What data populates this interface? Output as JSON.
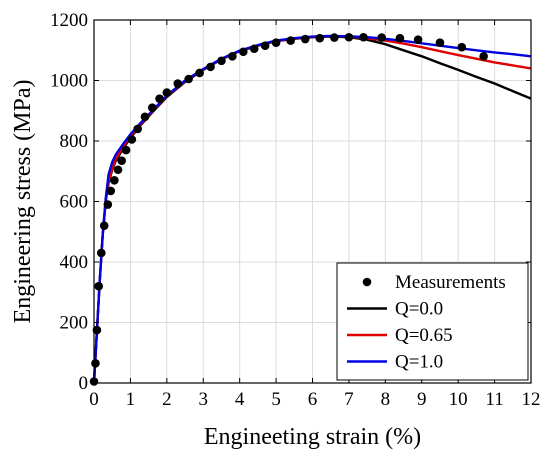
{
  "chart_data": {
    "type": "line",
    "title": "",
    "xlabel": "Engineeting strain (%)",
    "ylabel": "Engineering stress (MPa)",
    "xlim": [
      0,
      12
    ],
    "ylim": [
      0,
      1200
    ],
    "xticks": [
      0,
      1,
      2,
      3,
      4,
      5,
      6,
      7,
      8,
      9,
      10,
      11,
      12
    ],
    "yticks": [
      0,
      200,
      400,
      600,
      800,
      1000,
      1200
    ],
    "grid": true,
    "legend_position": "bottom-right",
    "series": [
      {
        "name": "Measurements",
        "kind": "scatter",
        "color": "#000000",
        "x": [
          0.0,
          0.04,
          0.08,
          0.13,
          0.2,
          0.28,
          0.38,
          0.46,
          0.56,
          0.66,
          0.76,
          0.88,
          1.04,
          1.2,
          1.4,
          1.6,
          1.8,
          2.0,
          2.3,
          2.6,
          2.9,
          3.2,
          3.5,
          3.8,
          4.1,
          4.4,
          4.7,
          5.0,
          5.4,
          5.8,
          6.2,
          6.6,
          7.0,
          7.4,
          7.9,
          8.4,
          8.9,
          9.5,
          10.1,
          10.7
        ],
        "y": [
          5,
          65,
          175,
          320,
          430,
          520,
          590,
          635,
          670,
          705,
          735,
          770,
          805,
          840,
          880,
          910,
          940,
          960,
          990,
          1005,
          1025,
          1045,
          1065,
          1080,
          1095,
          1105,
          1115,
          1125,
          1132,
          1137,
          1140,
          1142,
          1143,
          1143,
          1142,
          1140,
          1135,
          1125,
          1110,
          1080
        ]
      },
      {
        "name": "Q=0.0",
        "kind": "line",
        "color": "#000000",
        "x": [
          0,
          0.08,
          0.16,
          0.24,
          0.32,
          0.4,
          0.5,
          0.6,
          0.8,
          1.0,
          1.3,
          1.6,
          2.0,
          2.5,
          3.0,
          3.5,
          4.0,
          4.5,
          5.0,
          5.5,
          6.0,
          6.5,
          7.0,
          7.5,
          8.0,
          8.5,
          9.0,
          9.5,
          10.0,
          10.5,
          11.0,
          11.5,
          12.0
        ],
        "y": [
          0,
          170,
          340,
          490,
          600,
          660,
          705,
          735,
          775,
          810,
          855,
          895,
          945,
          995,
          1035,
          1070,
          1097,
          1115,
          1130,
          1138,
          1143,
          1145,
          1143,
          1135,
          1120,
          1100,
          1080,
          1057,
          1035,
          1012,
          990,
          965,
          940
        ]
      },
      {
        "name": "Q=0.65",
        "kind": "line",
        "color": "#e00000",
        "x": [
          0,
          0.08,
          0.16,
          0.24,
          0.32,
          0.4,
          0.5,
          0.6,
          0.8,
          1.0,
          1.3,
          1.6,
          2.0,
          2.5,
          3.0,
          3.5,
          4.0,
          4.5,
          5.0,
          5.5,
          6.0,
          6.5,
          7.0,
          7.5,
          8.0,
          8.5,
          9.0,
          9.5,
          10.0,
          10.5,
          11.0,
          11.5,
          12.0
        ],
        "y": [
          0,
          170,
          340,
          490,
          600,
          665,
          710,
          740,
          780,
          815,
          858,
          898,
          948,
          998,
          1037,
          1071,
          1098,
          1116,
          1131,
          1139,
          1144,
          1146,
          1145,
          1140,
          1132,
          1122,
          1110,
          1097,
          1084,
          1072,
          1060,
          1050,
          1040
        ]
      },
      {
        "name": "Q=1.0",
        "kind": "line",
        "color": "#0000e0",
        "x": [
          0,
          0.08,
          0.16,
          0.24,
          0.32,
          0.4,
          0.5,
          0.6,
          0.8,
          1.0,
          1.3,
          1.6,
          2.0,
          2.5,
          3.0,
          3.5,
          4.0,
          4.5,
          5.0,
          5.5,
          6.0,
          6.5,
          7.0,
          7.5,
          8.0,
          8.5,
          9.0,
          9.5,
          10.0,
          10.5,
          11.0,
          11.5,
          12.0
        ],
        "y": [
          0,
          170,
          340,
          490,
          610,
          690,
          730,
          755,
          790,
          822,
          862,
          900,
          950,
          1000,
          1038,
          1072,
          1099,
          1117,
          1132,
          1140,
          1145,
          1147,
          1146,
          1143,
          1138,
          1131,
          1123,
          1115,
          1107,
          1100,
          1093,
          1087,
          1080
        ]
      }
    ]
  }
}
